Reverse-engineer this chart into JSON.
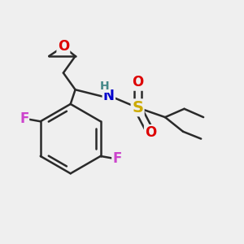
{
  "bg_color": "#efefef",
  "bond_color": "#2a2a2a",
  "bond_width": 1.8,
  "figsize": [
    3.0,
    3.0
  ],
  "dpi": 100,
  "colors": {
    "O": "#dd0000",
    "N": "#0000cc",
    "H": "#448888",
    "S": "#ccaa00",
    "F": "#cc44cc",
    "C": "#2a2a2a"
  }
}
